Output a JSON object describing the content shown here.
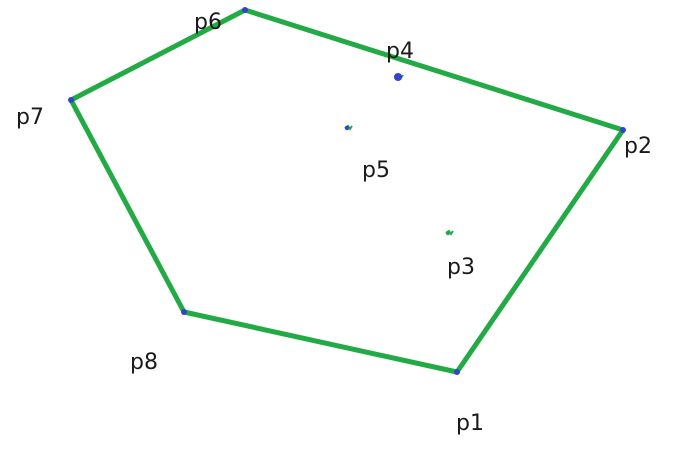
{
  "diagram": {
    "colors": {
      "edge": "#22aa44",
      "vertex": "#3344cc",
      "background": "#ffffff",
      "label": "#1a1a1a"
    },
    "points": [
      {
        "id": "p1",
        "label": "p1"
      },
      {
        "id": "p2",
        "label": "p2"
      },
      {
        "id": "p3",
        "label": "p3"
      },
      {
        "id": "p4",
        "label": "p4"
      },
      {
        "id": "p5",
        "label": "p5"
      },
      {
        "id": "p6",
        "label": "p6"
      },
      {
        "id": "p7",
        "label": "p7"
      },
      {
        "id": "p8",
        "label": "p8"
      }
    ],
    "hull_order": [
      "p1",
      "p2",
      "p6",
      "p7",
      "p8"
    ],
    "interior_points": [
      "p3",
      "p4",
      "p5"
    ]
  }
}
